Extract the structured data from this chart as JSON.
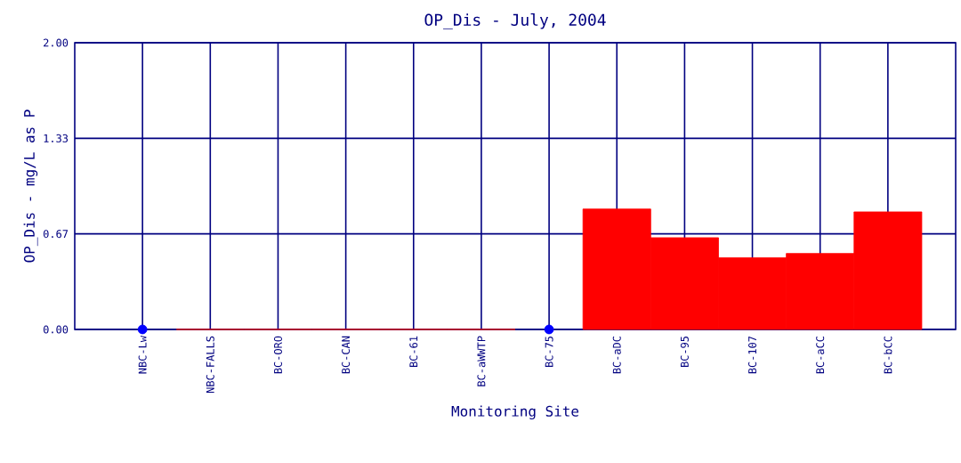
{
  "chart_data": {
    "type": "bar",
    "title": "OP_Dis - July, 2004",
    "xlabel": "Monitoring Site",
    "ylabel": "OP_Dis - mg/L as P",
    "categories": [
      "NBC-Lw",
      "NBC-FALLS",
      "BC-ORO",
      "BC-CAN",
      "BC-61",
      "BC-aWWTP",
      "BC-75",
      "BC-aDC",
      "BC-95",
      "BC-107",
      "BC-aCC",
      "BC-bCC"
    ],
    "series": [
      {
        "color": "#ff0000",
        "values": [
          null,
          0,
          0,
          0,
          0,
          0,
          null,
          0.84,
          0.64,
          0.5,
          0.53,
          0.82
        ]
      },
      {
        "type": "scatter",
        "color": "#0000ff",
        "values": [
          0,
          null,
          null,
          null,
          null,
          null,
          0,
          null,
          null,
          null,
          null,
          null
        ]
      }
    ],
    "ylim": [
      0,
      2
    ],
    "yticks": [
      {
        "value": 0,
        "label": "0.00"
      },
      {
        "value": 0.6667,
        "label": "0.67"
      },
      {
        "value": 1.3333,
        "label": "1.33"
      },
      {
        "value": 2,
        "label": "2.00"
      }
    ],
    "grid": true,
    "marker": "circle"
  }
}
